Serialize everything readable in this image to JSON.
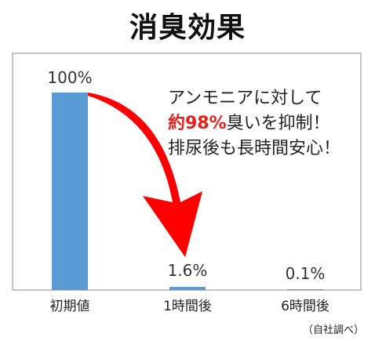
{
  "title": "消臭効果",
  "annotation": {
    "line1": "アンモニアに対して",
    "line2_highlight": "約98%",
    "line2_rest": "臭いを抑制！",
    "line3": "排尿後も長時間安心！"
  },
  "source": "（自社調べ）",
  "colors": {
    "bar": "#5b9bd5",
    "arrow": "#ff0000",
    "highlight": "#e8201c",
    "frame": "#888888"
  },
  "chart_data": {
    "type": "bar",
    "categories": [
      "初期値",
      "1時間後",
      "6時間後"
    ],
    "values": [
      100,
      1.6,
      0.1
    ],
    "value_labels": [
      "100%",
      "1.6%",
      "0.1%"
    ],
    "ylim": [
      0,
      100
    ],
    "grid": false,
    "legend": "none"
  }
}
